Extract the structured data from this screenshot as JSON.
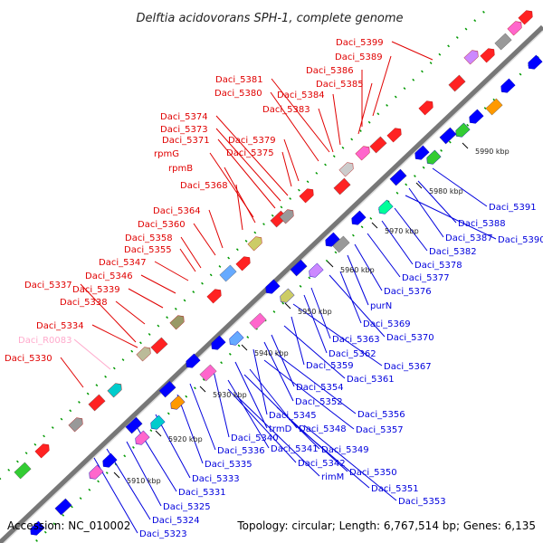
{
  "title": "Delftia acidovorans SPH-1, complete genome",
  "accession": "Accession: NC_010002",
  "topology": "Topology: circular; Length: 6,767,514 bp; Genes: 6,135",
  "scale_ticks": [
    "5910 kbp",
    "5920 kbp",
    "5930 kbp",
    "5940 kbp",
    "5950 kbp",
    "5960 kbp",
    "5970 kbp",
    "5980 kbp",
    "5990 kbp"
  ],
  "top_labels": [
    {
      "text": "Daci_5399",
      "color": "#e00000"
    },
    {
      "text": "Daci_5389",
      "color": "#e00000"
    },
    {
      "text": "Daci_5386",
      "color": "#e00000"
    },
    {
      "text": "Daci_5385",
      "color": "#e00000"
    },
    {
      "text": "Daci_5384",
      "color": "#e00000"
    },
    {
      "text": "Daci_5383",
      "color": "#e00000"
    },
    {
      "text": "Daci_5381",
      "color": "#e00000"
    },
    {
      "text": "Daci_5380",
      "color": "#e00000"
    },
    {
      "text": "Daci_5374",
      "color": "#e00000"
    },
    {
      "text": "Daci_5373",
      "color": "#e00000"
    },
    {
      "text": "Daci_5371",
      "color": "#e00000"
    },
    {
      "text": "Daci_5379",
      "color": "#e00000"
    },
    {
      "text": "Daci_5375",
      "color": "#e00000"
    },
    {
      "text": "rpmG",
      "color": "#e00000"
    },
    {
      "text": "rpmB",
      "color": "#e00000"
    },
    {
      "text": "Daci_5368",
      "color": "#e00000"
    },
    {
      "text": "Daci_5364",
      "color": "#e00000"
    },
    {
      "text": "Daci_5360",
      "color": "#e00000"
    },
    {
      "text": "Daci_5358",
      "color": "#e00000"
    },
    {
      "text": "Daci_5355",
      "color": "#e00000"
    },
    {
      "text": "Daci_5347",
      "color": "#e00000"
    },
    {
      "text": "Daci_5346",
      "color": "#e00000"
    },
    {
      "text": "Daci_5337",
      "color": "#e00000"
    },
    {
      "text": "Daci_5339",
      "color": "#e00000"
    },
    {
      "text": "Daci_5338",
      "color": "#e00000"
    },
    {
      "text": "Daci_5334",
      "color": "#e00000"
    },
    {
      "text": "Daci_R0083",
      "color": "#ffaacc"
    },
    {
      "text": "Daci_5330",
      "color": "#e00000"
    }
  ],
  "bottom_labels": [
    "Daci_5391",
    "Daci_5388",
    "Daci_5387",
    "Daci_5390",
    "Daci_5382",
    "Daci_5378",
    "Daci_5377",
    "Daci_5376",
    "purN",
    "Daci_5369",
    "Daci_5370",
    "Daci_5363",
    "Daci_5362",
    "Daci_5367",
    "Daci_5359",
    "Daci_5361",
    "Daci_5354",
    "Daci_5352",
    "Daci_5356",
    "Daci_5345",
    "Daci_5357",
    "trmD",
    "Daci_5348",
    "Daci_5340",
    "Daci_5349",
    "Daci_5336",
    "Daci_5341",
    "Daci_5335",
    "Daci_5342",
    "rimM",
    "Daci_5350",
    "Daci_5333",
    "Daci_5331",
    "Daci_5351",
    "Daci_5353",
    "Daci_5325",
    "Daci_5324",
    "Daci_5323"
  ],
  "colors": {
    "forward_gene": "#ff0000",
    "reverse_gene": "#0000ff",
    "backbone": "#888888",
    "tick_dots": "#009900",
    "rna_label": "#ffaacc"
  }
}
